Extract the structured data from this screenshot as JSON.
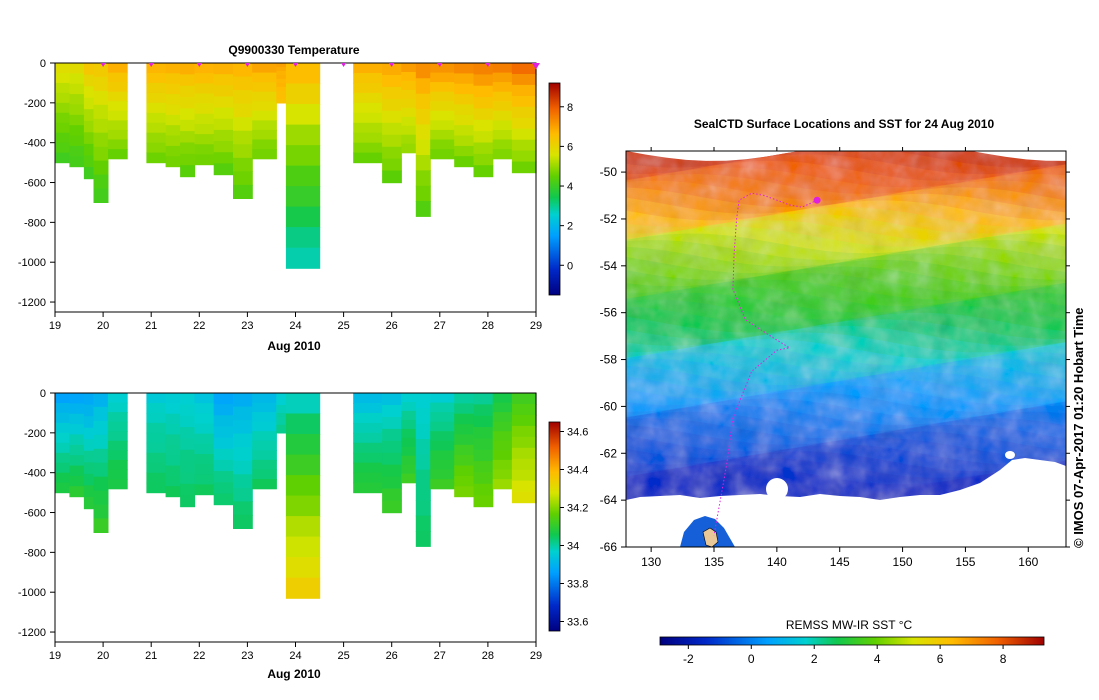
{
  "chart_data": [
    {
      "type": "heatmap",
      "title": "Q9900330  Temperature",
      "xlabel": "Aug 2010",
      "ylabel": "",
      "x_ticks": [
        "19",
        "20",
        "21",
        "22",
        "23",
        "24",
        "25",
        "26",
        "27",
        "28",
        "29"
      ],
      "xlim": [
        19,
        29
      ],
      "y_ticks": [
        "0",
        "-200",
        "-400",
        "-600",
        "-800",
        "-1000",
        "-1200"
      ],
      "ylim": [
        -1250,
        0
      ],
      "profile_markers_day": [
        20,
        21,
        22,
        23,
        24,
        25,
        26,
        27,
        28,
        29
      ],
      "colorbar": {
        "ticks": [
          "8",
          "6",
          "4",
          "2",
          "0"
        ],
        "range": [
          -1.5,
          9.2
        ]
      },
      "profiles": [
        {
          "t0": 19.0,
          "t1": 19.3,
          "depth": -500,
          "surface": 6,
          "deep": 4
        },
        {
          "t0": 19.3,
          "t1": 19.6,
          "depth": -520,
          "surface": 6,
          "deep": 4
        },
        {
          "t0": 19.6,
          "t1": 19.8,
          "depth": -580,
          "surface": 6.5,
          "deep": 4
        },
        {
          "t0": 19.8,
          "t1": 20.1,
          "depth": -700,
          "surface": 6.5,
          "deep": 4
        },
        {
          "t0": 20.1,
          "t1": 20.5,
          "depth": -480,
          "surface": 7,
          "deep": 4.5
        },
        {
          "t0": 20.9,
          "t1": 21.3,
          "depth": -500,
          "surface": 7,
          "deep": 4.5
        },
        {
          "t0": 21.3,
          "t1": 21.6,
          "depth": -520,
          "surface": 7,
          "deep": 4.5
        },
        {
          "t0": 21.6,
          "t1": 21.9,
          "depth": -570,
          "surface": 7,
          "deep": 4.3
        },
        {
          "t0": 21.9,
          "t1": 22.3,
          "depth": -510,
          "surface": 7,
          "deep": 4.5
        },
        {
          "t0": 22.3,
          "t1": 22.7,
          "depth": -560,
          "surface": 7,
          "deep": 4.3
        },
        {
          "t0": 22.7,
          "t1": 23.1,
          "depth": -680,
          "surface": 7,
          "deep": 4.2
        },
        {
          "t0": 23.1,
          "t1": 23.6,
          "depth": -480,
          "surface": 7.2,
          "deep": 4.5
        },
        {
          "t0": 23.6,
          "t1": 23.8,
          "depth": -200,
          "surface": 7,
          "deep": 6.5
        },
        {
          "t0": 23.8,
          "t1": 24.5,
          "depth": -1030,
          "surface": 7,
          "deep": 2.6
        },
        {
          "t0": 25.2,
          "t1": 25.8,
          "depth": -500,
          "surface": 7,
          "deep": 4.5
        },
        {
          "t0": 25.8,
          "t1": 26.2,
          "depth": -600,
          "surface": 7.2,
          "deep": 4.3
        },
        {
          "t0": 26.2,
          "t1": 26.5,
          "depth": -450,
          "surface": 7.3,
          "deep": 4.8
        },
        {
          "t0": 26.5,
          "t1": 26.8,
          "depth": -770,
          "surface": 7.5,
          "deep": 4.2
        },
        {
          "t0": 26.8,
          "t1": 27.3,
          "depth": -480,
          "surface": 7.5,
          "deep": 4.5
        },
        {
          "t0": 27.3,
          "t1": 27.7,
          "depth": -520,
          "surface": 7.6,
          "deep": 4.5
        },
        {
          "t0": 27.7,
          "t1": 28.1,
          "depth": -570,
          "surface": 7.8,
          "deep": 4.4
        },
        {
          "t0": 28.1,
          "t1": 28.5,
          "depth": -480,
          "surface": 7.8,
          "deep": 4.6
        },
        {
          "t0": 28.5,
          "t1": 29.0,
          "depth": -550,
          "surface": 8,
          "deep": 4.5
        }
      ]
    },
    {
      "type": "heatmap",
      "title": "",
      "xlabel": "Aug 2010",
      "ylabel": "",
      "x_ticks": [
        "19",
        "20",
        "21",
        "22",
        "23",
        "24",
        "25",
        "26",
        "27",
        "28",
        "29"
      ],
      "xlim": [
        19,
        29
      ],
      "y_ticks": [
        "0",
        "-200",
        "-400",
        "-600",
        "-800",
        "-1000",
        "-1200"
      ],
      "ylim": [
        -1250,
        0
      ],
      "colorbar": {
        "ticks": [
          "34.6",
          "34.4",
          "34.2",
          "34",
          "33.8",
          "33.6"
        ],
        "range": [
          33.55,
          34.65
        ]
      },
      "profiles": [
        {
          "t0": 19.0,
          "t1": 19.3,
          "depth": -500,
          "surface": 33.85,
          "deep": 34.08
        },
        {
          "t0": 19.3,
          "t1": 19.6,
          "depth": -520,
          "surface": 33.85,
          "deep": 34.1
        },
        {
          "t0": 19.6,
          "t1": 19.8,
          "depth": -580,
          "surface": 33.85,
          "deep": 34.1
        },
        {
          "t0": 19.8,
          "t1": 20.1,
          "depth": -700,
          "surface": 33.88,
          "deep": 34.12
        },
        {
          "t0": 20.1,
          "t1": 20.5,
          "depth": -480,
          "surface": 33.95,
          "deep": 34.08
        },
        {
          "t0": 20.9,
          "t1": 21.3,
          "depth": -500,
          "surface": 33.95,
          "deep": 34.05
        },
        {
          "t0": 21.3,
          "t1": 21.6,
          "depth": -520,
          "surface": 33.95,
          "deep": 34.05
        },
        {
          "t0": 21.6,
          "t1": 21.9,
          "depth": -570,
          "surface": 33.95,
          "deep": 34.05
        },
        {
          "t0": 21.9,
          "t1": 22.3,
          "depth": -510,
          "surface": 33.93,
          "deep": 34.05
        },
        {
          "t0": 22.3,
          "t1": 22.7,
          "depth": -560,
          "surface": 33.85,
          "deep": 34.05
        },
        {
          "t0": 22.7,
          "t1": 23.1,
          "depth": -680,
          "surface": 33.88,
          "deep": 34.05
        },
        {
          "t0": 23.1,
          "t1": 23.6,
          "depth": -480,
          "surface": 33.9,
          "deep": 34.05
        },
        {
          "t0": 23.6,
          "t1": 23.8,
          "depth": -200,
          "surface": 33.95,
          "deep": 34.02
        },
        {
          "t0": 23.8,
          "t1": 24.5,
          "depth": -1030,
          "surface": 33.95,
          "deep": 34.35
        },
        {
          "t0": 25.2,
          "t1": 25.8,
          "depth": -500,
          "surface": 33.9,
          "deep": 34.1
        },
        {
          "t0": 25.8,
          "t1": 26.2,
          "depth": -600,
          "surface": 33.92,
          "deep": 34.12
        },
        {
          "t0": 26.2,
          "t1": 26.5,
          "depth": -450,
          "surface": 33.95,
          "deep": 34.12
        },
        {
          "t0": 26.5,
          "t1": 26.8,
          "depth": -770,
          "surface": 33.95,
          "deep": 34.05
        },
        {
          "t0": 26.8,
          "t1": 27.3,
          "depth": -480,
          "surface": 33.95,
          "deep": 34.12
        },
        {
          "t0": 27.3,
          "t1": 27.7,
          "depth": -520,
          "surface": 33.98,
          "deep": 34.2
        },
        {
          "t0": 27.7,
          "t1": 28.1,
          "depth": -570,
          "surface": 34.0,
          "deep": 34.18
        },
        {
          "t0": 28.1,
          "t1": 28.5,
          "depth": -480,
          "surface": 34.05,
          "deep": 34.22
        },
        {
          "t0": 28.5,
          "t1": 29.0,
          "depth": -550,
          "surface": 34.1,
          "deep": 34.3
        }
      ]
    },
    {
      "type": "heatmap",
      "title": "SealCTD Surface Locations and SST for 24 Aug 2010",
      "xlabel": "",
      "ylabel": "",
      "x_ticks": [
        "130",
        "135",
        "140",
        "145",
        "150",
        "155",
        "160"
      ],
      "xlim": [
        128,
        163
      ],
      "y_ticks": [
        "-50",
        "-52",
        "-54",
        "-56",
        "-58",
        "-60",
        "-62",
        "-64",
        "-66"
      ],
      "ylim": [
        -66,
        -49.1
      ],
      "colorbar": {
        "label": "REMSS MW-IR SST °C",
        "ticks": [
          "-2",
          "0",
          "2",
          "4",
          "6",
          "8"
        ],
        "range": [
          -2.9,
          9.3
        ]
      },
      "sst_latitude_profile": [
        {
          "lat": -49,
          "sst": 8.5
        },
        {
          "lat": -51,
          "sst": 7.2
        },
        {
          "lat": -53,
          "sst": 5
        },
        {
          "lat": -55,
          "sst": 3.6
        },
        {
          "lat": -57,
          "sst": 2.2
        },
        {
          "lat": -59,
          "sst": 0.8
        },
        {
          "lat": -61,
          "sst": -0.3
        },
        {
          "lat": -63,
          "sst": -1.3
        },
        {
          "lat": -66,
          "sst": -1.8
        }
      ],
      "track": [
        {
          "lon": 143.2,
          "lat": -51.2
        },
        {
          "lon": 142.0,
          "lat": -51.5
        },
        {
          "lon": 141.0,
          "lat": -51.4
        },
        {
          "lon": 140.0,
          "lat": -51.2
        },
        {
          "lon": 139.0,
          "lat": -51.0
        },
        {
          "lon": 138.0,
          "lat": -50.9
        },
        {
          "lon": 137.0,
          "lat": -51.2
        },
        {
          "lon": 136.8,
          "lat": -52.0
        },
        {
          "lon": 136.6,
          "lat": -53.5
        },
        {
          "lon": 136.5,
          "lat": -55.0
        },
        {
          "lon": 137.5,
          "lat": -56.3
        },
        {
          "lon": 139.5,
          "lat": -57.0
        },
        {
          "lon": 141.0,
          "lat": -57.5
        },
        {
          "lon": 140.0,
          "lat": -57.6
        },
        {
          "lon": 138.0,
          "lat": -58.5
        },
        {
          "lon": 136.5,
          "lat": -60.5
        },
        {
          "lon": 136.0,
          "lat": -62.5
        },
        {
          "lon": 135.5,
          "lat": -64.0
        },
        {
          "lon": 135.0,
          "lat": -65.5
        }
      ],
      "latest_position": {
        "lon": 143.2,
        "lat": -51.2
      },
      "credit": "© IMOS 07-Apr-2017 01:20 Hobart Time"
    }
  ]
}
